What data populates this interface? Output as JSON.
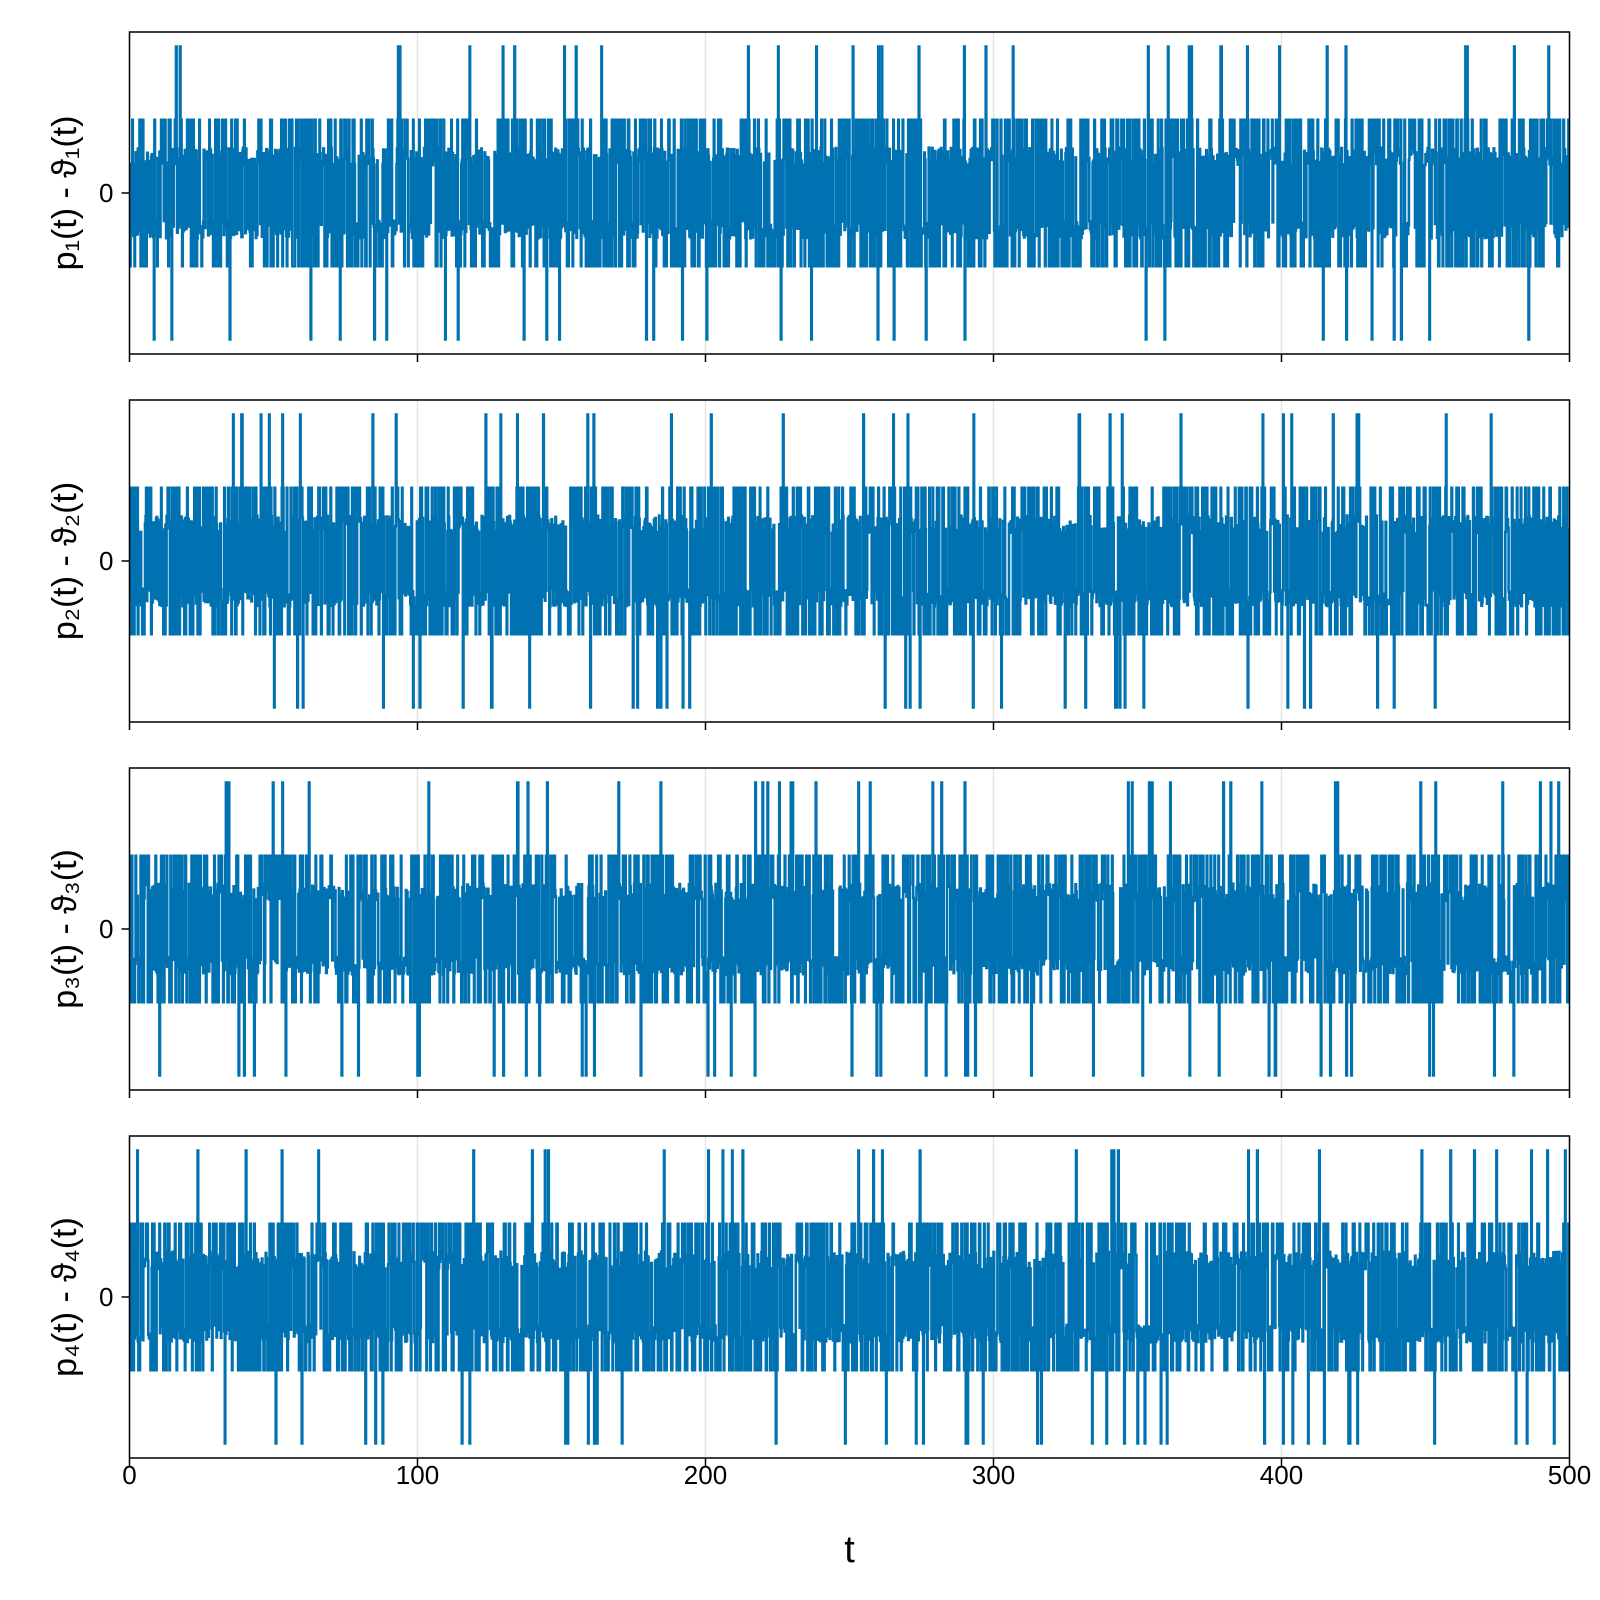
{
  "chart_data": {
    "type": "line",
    "line_color": "#0072b2",
    "grid": true,
    "x_axis": {
      "label": "t",
      "range": [
        0,
        500
      ],
      "ticks": [
        0,
        100,
        200,
        300,
        400,
        500
      ],
      "tick_labels": [
        "0",
        "100",
        "200",
        "300",
        "400",
        "500"
      ]
    },
    "panels": [
      {
        "ylabel": "p₁(t) - ϑ₁(t)",
        "yticks": [
          0
        ],
        "ytick_labels": [
          "0"
        ],
        "ylim": [
          -1.1,
          1.1
        ],
        "levels": [
          -1,
          -0.5,
          -0.25,
          0.25,
          0.5,
          1
        ],
        "seed": 11
      },
      {
        "ylabel": "p₂(t) - ϑ₂(t)",
        "yticks": [
          0
        ],
        "ytick_labels": [
          "0"
        ],
        "ylim": [
          -1.1,
          1.1
        ],
        "levels": [
          -1,
          -0.5,
          -0.25,
          0.25,
          0.5,
          1
        ],
        "seed": 23
      },
      {
        "ylabel": "p₃(t) - ϑ₃(t)",
        "yticks": [
          0
        ],
        "ytick_labels": [
          "0"
        ],
        "ylim": [
          -1.1,
          1.1
        ],
        "levels": [
          -1,
          -0.5,
          -0.25,
          0.25,
          0.5,
          1
        ],
        "seed": 37
      },
      {
        "ylabel": "p₄(t) - ϑ₄(t)",
        "yticks": [
          0
        ],
        "ytick_labels": [
          "0"
        ],
        "ylim": [
          -1.1,
          1.1
        ],
        "levels": [
          -1,
          -0.5,
          -0.25,
          0.25,
          0.5,
          1
        ],
        "seed": 53
      }
    ]
  }
}
